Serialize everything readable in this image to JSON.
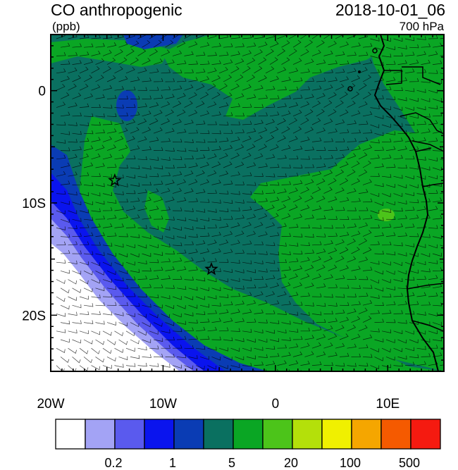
{
  "title": "CO anthropogenic",
  "datetime": "2018-10-01_06",
  "units": "(ppb)",
  "level": "700 hPa",
  "map": {
    "lon_range": [
      -20,
      15
    ],
    "lat_range": [
      -25,
      5
    ],
    "lon_ticks": [
      {
        "value": -20,
        "label": "20W"
      },
      {
        "value": -10,
        "label": "10W"
      },
      {
        "value": 0,
        "label": "0"
      },
      {
        "value": 10,
        "label": "10E"
      }
    ],
    "lat_ticks": [
      {
        "value": 0,
        "label": "0"
      },
      {
        "value": -10,
        "label": "10S"
      },
      {
        "value": -20,
        "label": "20S"
      }
    ],
    "markers": [
      {
        "name": "star-marker-1",
        "lon": -14.3,
        "lat": -8.0
      },
      {
        "name": "star-marker-2",
        "lon": -5.7,
        "lat": -15.9
      }
    ]
  },
  "colorbar": {
    "colors": [
      "#ffffff",
      "#a3a3f5",
      "#5a5aee",
      "#0a14ee",
      "#0a3cb4",
      "#0a7060",
      "#0aa624",
      "#4cc41a",
      "#b4e00a",
      "#f0f000",
      "#f5a600",
      "#f55a00",
      "#f51a10"
    ],
    "labels": [
      {
        "index": 2,
        "label": "0.2"
      },
      {
        "index": 4,
        "label": "1"
      },
      {
        "index": 6,
        "label": "5"
      },
      {
        "index": 8,
        "label": "20"
      },
      {
        "index": 10,
        "label": "100"
      },
      {
        "index": 12,
        "label": "500"
      }
    ]
  }
}
